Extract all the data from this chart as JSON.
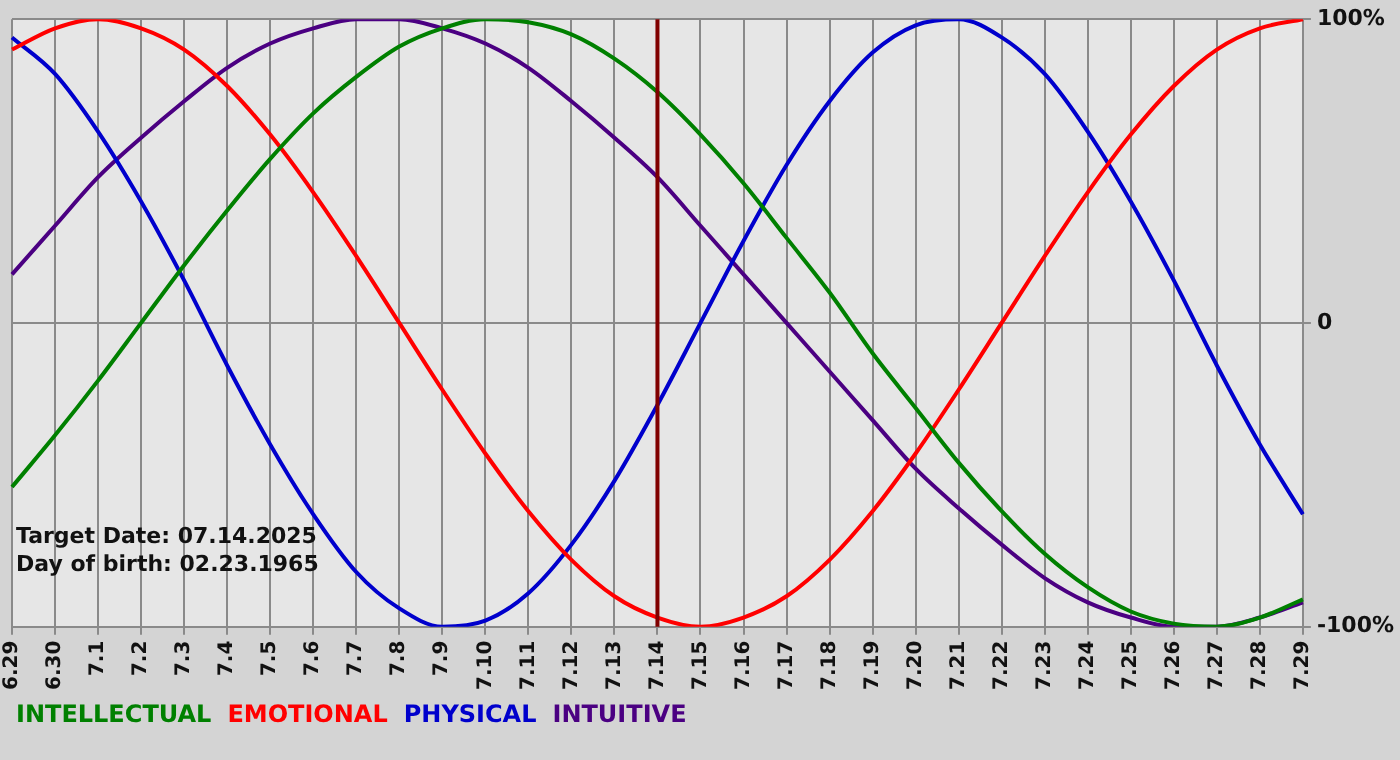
{
  "chart_data": {
    "type": "line",
    "categories": [
      "6.29",
      "6.30",
      "7.1",
      "7.2",
      "7.3",
      "7.4",
      "7.5",
      "7.6",
      "7.7",
      "7.8",
      "7.9",
      "7.10",
      "7.11",
      "7.12",
      "7.13",
      "7.14",
      "7.15",
      "7.16",
      "7.17",
      "7.18",
      "7.19",
      "7.20",
      "7.21",
      "7.22",
      "7.23",
      "7.24",
      "7.25",
      "7.26",
      "7.27",
      "7.28",
      "7.29"
    ],
    "series": [
      {
        "name": "INTELLECTUAL",
        "color": "#008000",
        "values": [
          -54,
          -37,
          -19,
          0,
          19,
          37,
          54,
          69,
          81,
          91,
          97,
          100,
          99,
          95,
          87,
          76,
          62,
          46,
          28,
          10,
          -10,
          -28,
          -46,
          -62,
          -76,
          -87,
          -95,
          -99,
          -100,
          -97,
          -91
        ]
      },
      {
        "name": "EMOTIONAL",
        "color": "#ff0000",
        "values": [
          90,
          97,
          100,
          97,
          90,
          78,
          62,
          43,
          22,
          0,
          -22,
          -43,
          -62,
          -78,
          -90,
          -97,
          -100,
          -97,
          -90,
          -78,
          -62,
          -43,
          -22,
          0,
          22,
          43,
          62,
          78,
          90,
          97,
          100
        ]
      },
      {
        "name": "PHYSICAL",
        "color": "#0000cc",
        "values": [
          94,
          82,
          63,
          40,
          14,
          -14,
          -40,
          -63,
          -82,
          -94,
          -100,
          -98,
          -89,
          -73,
          -52,
          -27,
          0,
          27,
          52,
          73,
          89,
          98,
          100,
          94,
          82,
          63,
          40,
          14,
          -14,
          -40,
          -63
        ]
      },
      {
        "name": "INTUITIVE",
        "color": "#4b0082",
        "values": [
          16,
          32,
          48,
          61,
          73,
          84,
          92,
          97,
          100,
          100,
          97,
          92,
          84,
          73,
          61,
          48,
          32,
          16,
          0,
          -16,
          -32,
          -48,
          -61,
          -73,
          -84,
          -92,
          -97,
          -100,
          -100,
          -97,
          -92
        ]
      }
    ],
    "ylim": [
      -100,
      100
    ],
    "yticks": [
      {
        "value": -100,
        "label": "-100%"
      },
      {
        "value": 0,
        "label": "0"
      },
      {
        "value": 100,
        "label": "100%"
      }
    ],
    "grid": true,
    "legend": "bottom left",
    "marker": "none",
    "line_style": "solid",
    "ref_lines": [
      {
        "axis": "x",
        "value": "7.14",
        "color": "#800000"
      }
    ],
    "annotations": [
      "Target Date: 07.14.2025",
      "Day of birth: 02.23.1965"
    ]
  }
}
